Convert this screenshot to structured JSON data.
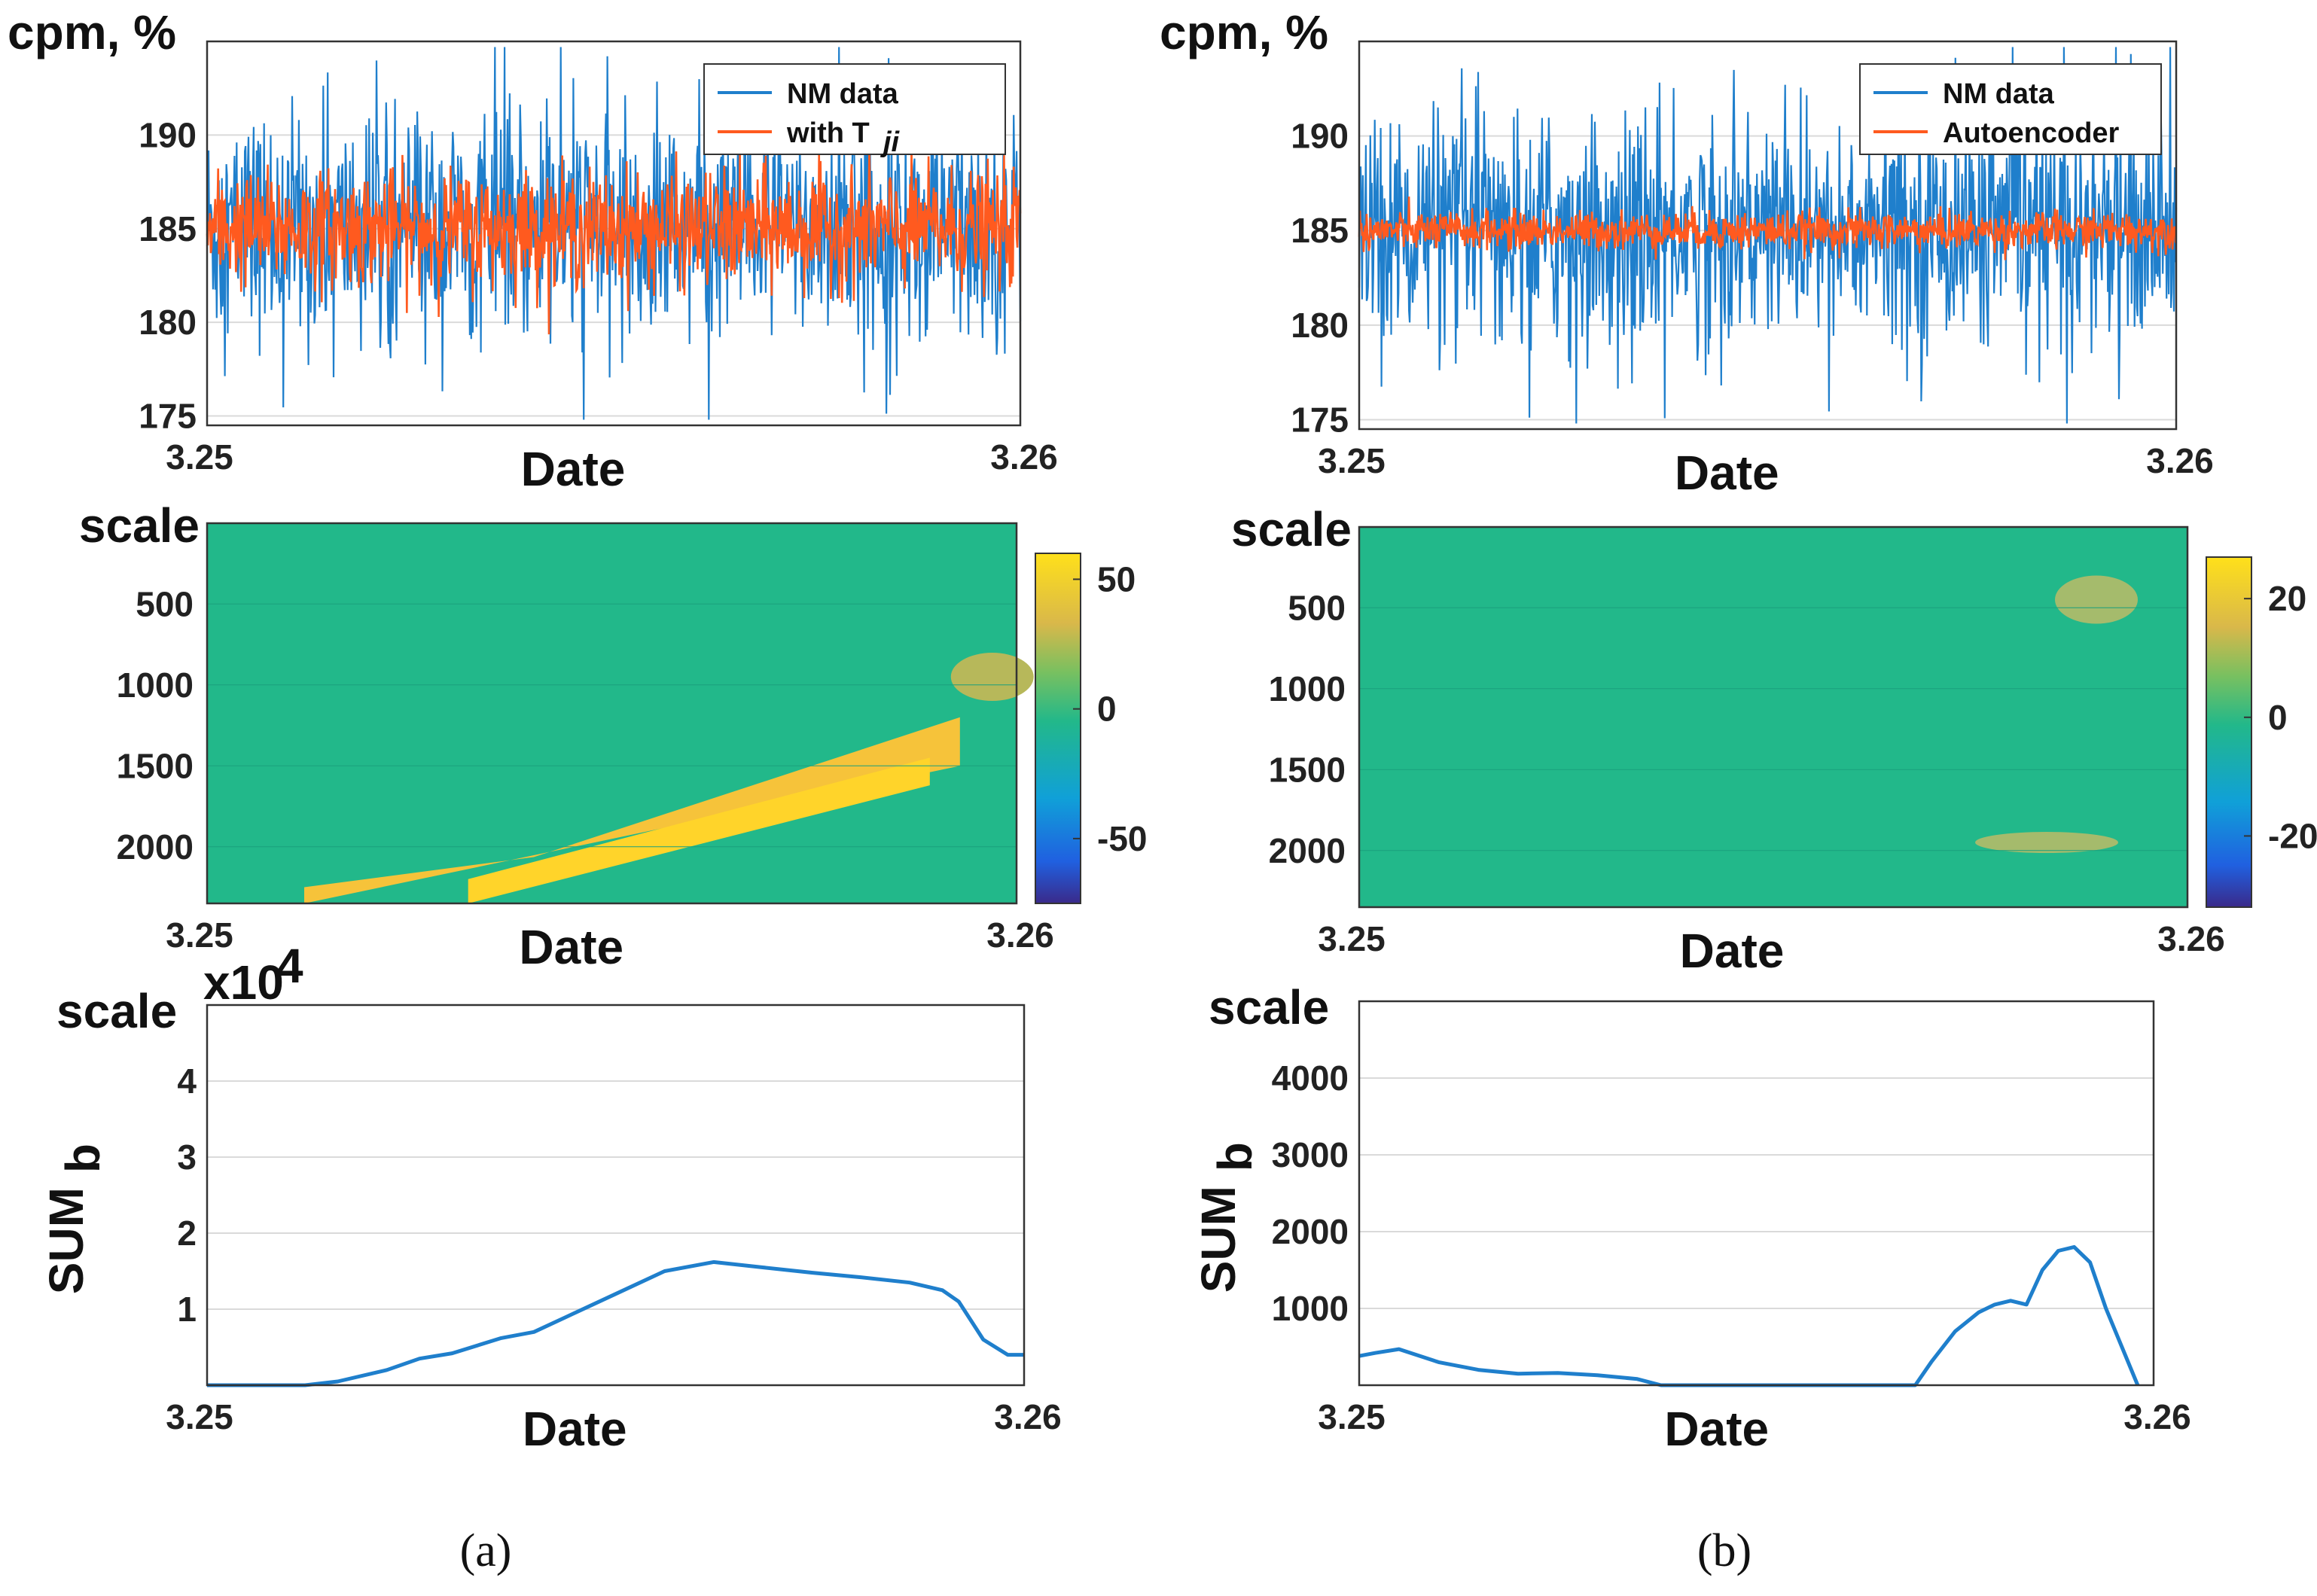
{
  "chart_data": [
    {
      "id": "a1",
      "type": "line",
      "ylabel": "cpm, %",
      "xlabel": "Date",
      "xticklabels": [
        "3.25",
        "3.26"
      ],
      "yticks": [
        175,
        180,
        185,
        190
      ],
      "ylim": [
        174.5,
        195
      ],
      "grid": true,
      "legend": "top-right",
      "series": [
        {
          "name": "NM data",
          "color": "#1f7fcc",
          "mean": 185,
          "std": 3.0
        },
        {
          "name": "with T",
          "name_sub": "ji",
          "color": "#ff5a1f",
          "mean": 185,
          "std": 1.5
        }
      ]
    },
    {
      "id": "a2",
      "type": "heatmap",
      "ylabel": "scale",
      "xlabel": "Date",
      "xticklabels": [
        "3.25",
        "3.26"
      ],
      "yticks": [
        500,
        1000,
        1500,
        2000
      ],
      "ylim": [
        1,
        2350
      ],
      "colorbar": {
        "ticks": [
          50,
          0,
          -50
        ],
        "range": [
          -75,
          60
        ]
      },
      "features": [
        {
          "desc": "diagonal band",
          "x0": 0.12,
          "x1": 0.93,
          "scale_low0": 2350,
          "scale_low1": 1500,
          "scale_high0": 2250,
          "scale_high1": 1200,
          "value": 50
        },
        {
          "desc": "blob",
          "x": 0.97,
          "scale": 950,
          "value": 25
        }
      ]
    },
    {
      "id": "a3",
      "type": "line",
      "ylabel": "scale",
      "ylabel2": "SUM",
      "ylabel2_sub": "b",
      "xlabel": "Date",
      "xticklabels": [
        "3.25",
        "3.26"
      ],
      "multiplier": "x10",
      "multiplier_exp": "4",
      "yticks": [
        1,
        2,
        3,
        4
      ],
      "ylim": [
        0,
        5
      ],
      "grid": true,
      "series": [
        {
          "name": "SUMb",
          "color": "#1f7fcc",
          "x": [
            0,
            0.12,
            0.16,
            0.22,
            0.26,
            0.3,
            0.36,
            0.4,
            0.44,
            0.5,
            0.56,
            0.62,
            0.68,
            0.74,
            0.8,
            0.86,
            0.9,
            0.92,
            0.95,
            0.98,
            1.0
          ],
          "y": [
            0,
            0,
            0.05,
            0.2,
            0.35,
            0.42,
            0.62,
            0.7,
            0.9,
            1.2,
            1.5,
            1.62,
            1.55,
            1.48,
            1.42,
            1.35,
            1.25,
            1.1,
            0.6,
            0.4,
            0.4
          ]
        }
      ]
    },
    {
      "id": "b1",
      "type": "line",
      "ylabel": "cpm, %",
      "xlabel": "Date",
      "xticklabels": [
        "3.25",
        "3.26"
      ],
      "yticks": [
        175,
        180,
        185,
        190
      ],
      "ylim": [
        174.5,
        195
      ],
      "grid": true,
      "legend": "top-right",
      "series": [
        {
          "name": "NM data",
          "color": "#1f7fcc",
          "mean": 185,
          "std": 3.0
        },
        {
          "name": "Autoencoder",
          "color": "#ff5a1f",
          "mean": 185,
          "std": 0.5
        }
      ]
    },
    {
      "id": "b2",
      "type": "heatmap",
      "ylabel": "scale",
      "xlabel": "Date",
      "xticklabels": [
        "3.25",
        "3.26"
      ],
      "yticks": [
        500,
        1000,
        1500,
        2000
      ],
      "ylim": [
        1,
        2350
      ],
      "colorbar": {
        "ticks": [
          20,
          0,
          -20
        ],
        "range": [
          -32,
          27
        ]
      },
      "features": [
        {
          "desc": "blob upper right",
          "x": 0.89,
          "scale": 450,
          "value": 10
        },
        {
          "desc": "blob lower right",
          "x": 0.83,
          "scale": 1950,
          "value": 12
        }
      ]
    },
    {
      "id": "b3",
      "type": "line",
      "ylabel": "scale",
      "ylabel2": "SUM",
      "ylabel2_sub": "b",
      "xlabel": "Date",
      "xticklabels": [
        "3.25",
        "3.26"
      ],
      "yticks": [
        1000,
        2000,
        3000,
        4000
      ],
      "ylim": [
        0,
        5000
      ],
      "grid": true,
      "series": [
        {
          "name": "SUMb",
          "color": "#1f7fcc",
          "x": [
            0,
            0.02,
            0.05,
            0.1,
            0.15,
            0.2,
            0.25,
            0.3,
            0.35,
            0.38,
            0.45,
            0.55,
            0.65,
            0.7,
            0.72,
            0.75,
            0.78,
            0.8,
            0.82,
            0.84,
            0.86,
            0.88,
            0.9,
            0.92,
            0.94,
            0.96,
            0.98
          ],
          "y": [
            380,
            420,
            470,
            300,
            200,
            150,
            160,
            130,
            80,
            0,
            0,
            0,
            0,
            0,
            300,
            700,
            950,
            1050,
            1100,
            1050,
            1500,
            1750,
            1800,
            1600,
            1000,
            500,
            0
          ]
        }
      ]
    }
  ],
  "captions": [
    "(a)",
    "(b)"
  ]
}
